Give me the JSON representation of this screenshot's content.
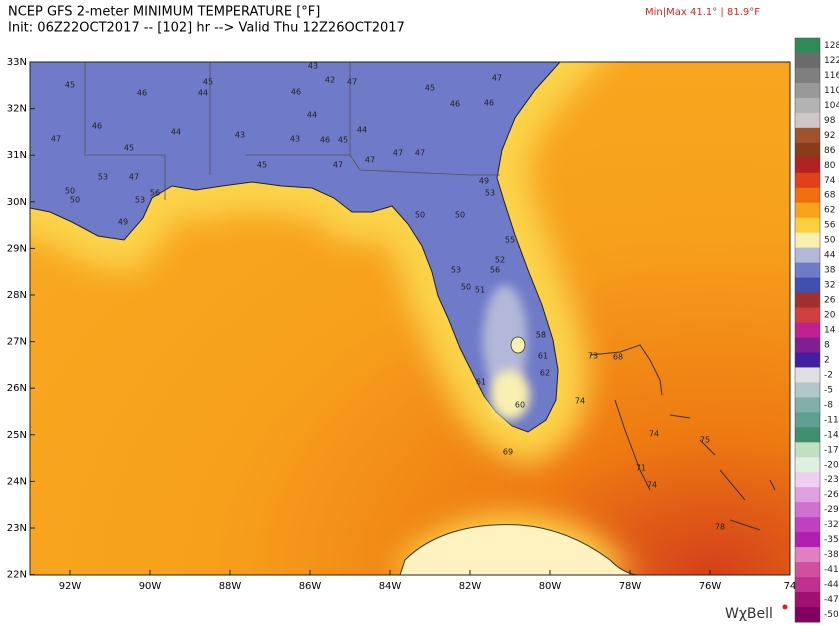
{
  "header": {
    "title": "NCEP GFS 2-meter MINIMUM TEMPERATURE [°F]",
    "subtitle": "Init: 06Z22OCT2017 -- [102] hr --> Valid Thu 12Z26OCT2017",
    "minmax": "Min|Max 41.1° | 81.9°F"
  },
  "map": {
    "lat_labels": [
      "33N",
      "32N",
      "31N",
      "30N",
      "29N",
      "28N",
      "27N",
      "26N",
      "25N",
      "24N",
      "23N",
      "22N"
    ],
    "lon_labels": [
      "92W",
      "90W",
      "88W",
      "86W",
      "84W",
      "82W",
      "80W",
      "78W",
      "76W",
      "74"
    ],
    "station_values": [
      45,
      45,
      46,
      44,
      42,
      47,
      43,
      46,
      44,
      45,
      46,
      47,
      46,
      46,
      44,
      43,
      43,
      46,
      45,
      44,
      47,
      47,
      47,
      45,
      47,
      45,
      47,
      53,
      47,
      50,
      50,
      49,
      53,
      56,
      49,
      53,
      50,
      50,
      53,
      50,
      51,
      56,
      52,
      55,
      58,
      61,
      62,
      61,
      60,
      74,
      74,
      75,
      73,
      68,
      71,
      74,
      78,
      69
    ]
  },
  "colorbar": {
    "ticks": [
      128,
      122,
      116,
      110,
      104,
      98,
      92,
      86,
      80,
      74,
      68,
      62,
      56,
      50,
      44,
      38,
      32,
      26,
      20,
      14,
      8,
      2,
      -2,
      -5,
      -8,
      -11,
      -14,
      -17,
      -20,
      -23,
      -26,
      -29,
      -32,
      -35,
      -38,
      -41,
      -44,
      -47,
      -50
    ],
    "colors": [
      "#2e8b57",
      "#6b6b6b",
      "#7f7f7f",
      "#999999",
      "#b3b3b3",
      "#cfc7c7",
      "#a0522d",
      "#8b3a1a",
      "#b22222",
      "#e0401a",
      "#f07010",
      "#f9a21c",
      "#fbd040",
      "#f8f0b0",
      "#b4b8d8",
      "#6f7ac8",
      "#4050b0",
      "#a03030",
      "#d04040",
      "#c02090",
      "#802090",
      "#4020a0",
      "#e0e0e0",
      "#b0c8c8",
      "#80b0a8",
      "#60a090",
      "#409070",
      "#c0e0c0",
      "#e0f0e0",
      "#f0d0f0",
      "#e0a0e0",
      "#d070d0",
      "#c040c0",
      "#b020b0",
      "#e080c0",
      "#d050a0",
      "#c03090",
      "#a01070",
      "#800060"
    ]
  },
  "footer": {
    "logo": "WχBell"
  }
}
